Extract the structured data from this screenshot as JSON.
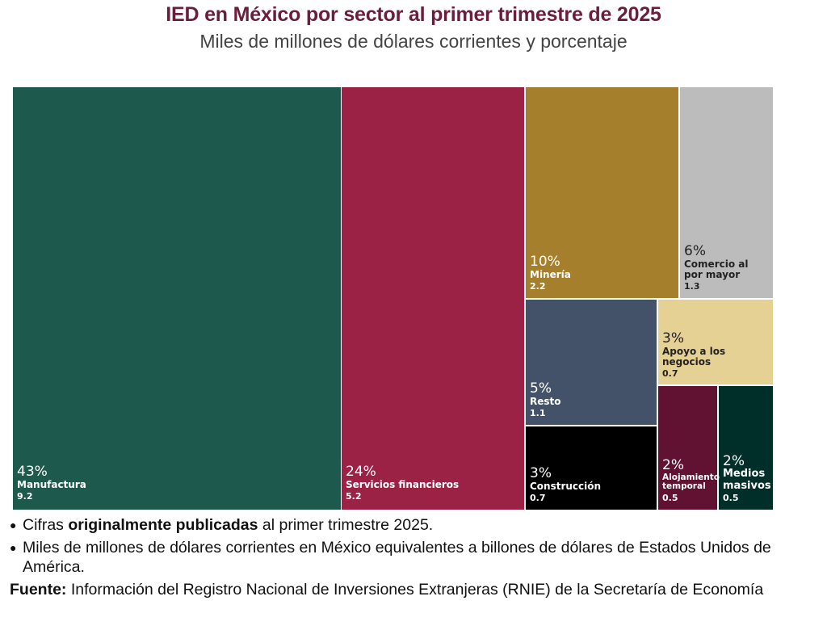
{
  "header": {
    "title": "IED en México por sector al primer trimestre de 2025",
    "subtitle": "Miles de millones de dólares corrientes y porcentaje"
  },
  "chart_data": {
    "type": "treemap",
    "title": "IED en México por sector al primer trimestre de 2025",
    "subtitle": "Miles de millones de dólares corrientes y porcentaje",
    "units": "Miles de millones de dólares corrientes",
    "items": [
      {
        "name": "Manufactura",
        "value": 9.2,
        "pct": "43%",
        "color": "#1d5a4d",
        "text_color": "#ffffff"
      },
      {
        "name": "Servicios financieros",
        "value": 5.2,
        "pct": "24%",
        "color": "#9b2245",
        "text_color": "#ffffff"
      },
      {
        "name": "Minería",
        "value": 2.2,
        "pct": "10%",
        "color": "#a57f2c",
        "text_color": "#ffffff"
      },
      {
        "name": "Comercio al por mayor",
        "value": 1.3,
        "pct": "6%",
        "color": "#bcbcbc",
        "text_color": "#222222"
      },
      {
        "name": "Resto",
        "value": 1.1,
        "pct": "5%",
        "color": "#445269",
        "text_color": "#ffffff"
      },
      {
        "name": "Construcción",
        "value": 0.7,
        "pct": "3%",
        "color": "#000000",
        "text_color": "#ffffff"
      },
      {
        "name": "Apoyo a los negocios",
        "value": 0.7,
        "pct": "3%",
        "color": "#e6d194",
        "text_color": "#222222"
      },
      {
        "name": "Alojamiento temporal",
        "value": 0.5,
        "pct": "2%",
        "color": "#611232",
        "text_color": "#ffffff"
      },
      {
        "name": "Medios masivos",
        "value": 0.5,
        "pct": "2%",
        "color": "#002f2a",
        "text_color": "#ffffff"
      }
    ]
  },
  "notes": {
    "bullet1_pre": "Cifras ",
    "bullet1_bold": "originalmente publicadas",
    "bullet1_post": " al primer trimestre 2025.",
    "bullet2": "Miles de millones de dólares corrientes en México equivalentes a billones de dólares de Estados Unidos de América.",
    "source_label": "Fuente:",
    "source_text": " Información del Registro Nacional de Inversiones Extranjeras (RNIE) de la Secretaría de Economía"
  }
}
